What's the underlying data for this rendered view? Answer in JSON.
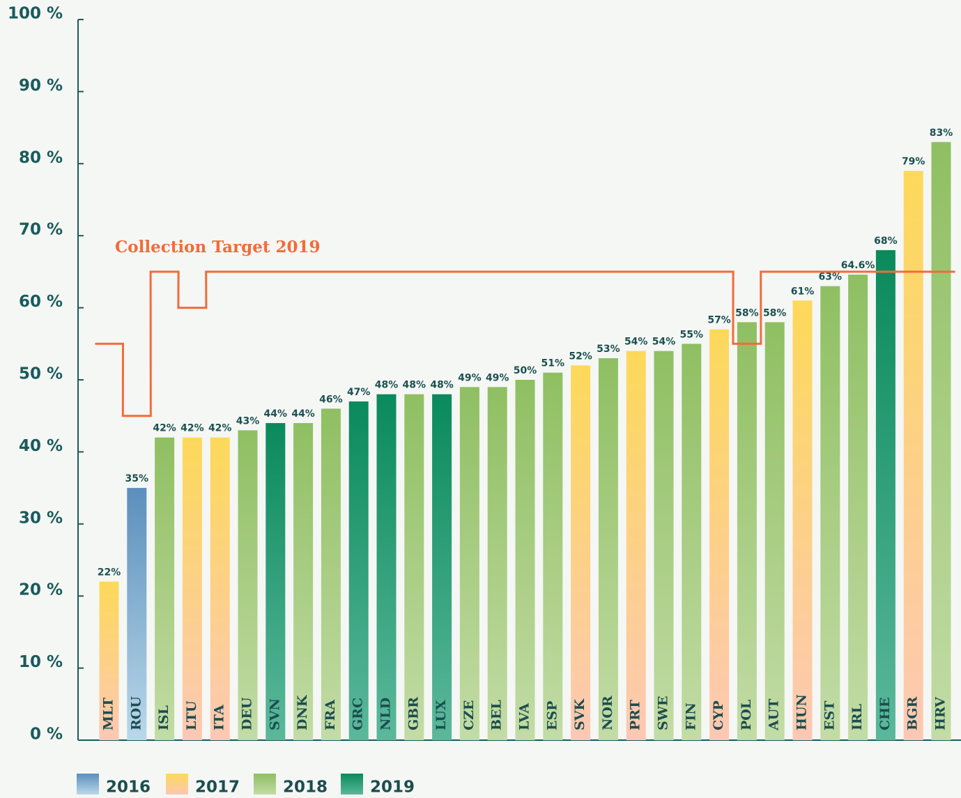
{
  "chart_data": {
    "type": "bar",
    "categories": [
      "MLT",
      "ROU",
      "ISL",
      "LTU",
      "ITA",
      "DEU",
      "SVN",
      "DNK",
      "FRA",
      "GRC",
      "NLD",
      "GBR",
      "LUX",
      "CZE",
      "BEL",
      "LVA",
      "ESP",
      "SVK",
      "NOR",
      "PRT",
      "SWE",
      "FIN",
      "CYP",
      "POL",
      "AUT",
      "HUN",
      "EST",
      "IRL",
      "CHE",
      "BGR",
      "HRV"
    ],
    "series": [
      {
        "name": "2016",
        "color": "#5b8fbc",
        "color_bottom": "#bad8ea",
        "values": [
          null,
          35,
          null,
          null,
          null,
          null,
          null,
          null,
          null,
          null,
          null,
          null,
          null,
          null,
          null,
          null,
          null,
          null,
          null,
          null,
          null,
          null,
          null,
          null,
          null,
          null,
          null,
          null,
          null,
          null,
          null
        ],
        "value_labels": [
          null,
          "35%",
          null,
          null,
          null,
          null,
          null,
          null,
          null,
          null,
          null,
          null,
          null,
          null,
          null,
          null,
          null,
          null,
          null,
          null,
          null,
          null,
          null,
          null,
          null,
          null,
          null,
          null,
          null,
          null,
          null
        ]
      },
      {
        "name": "2017",
        "color": "#fdd95a",
        "color_bottom": "#fdc8b4",
        "values": [
          22,
          null,
          null,
          42,
          42,
          null,
          null,
          null,
          null,
          null,
          null,
          null,
          null,
          null,
          null,
          null,
          null,
          52,
          null,
          54,
          null,
          null,
          57,
          null,
          null,
          61,
          null,
          null,
          null,
          79,
          null
        ],
        "value_labels": [
          "22%",
          null,
          null,
          "42%",
          "42%",
          null,
          null,
          null,
          null,
          null,
          null,
          null,
          null,
          null,
          null,
          null,
          null,
          "52%",
          null,
          "54%",
          null,
          null,
          "57%",
          null,
          null,
          "61%",
          null,
          null,
          null,
          "79%",
          null
        ]
      },
      {
        "name": "2018",
        "color": "#8fbf62",
        "color_bottom": "#c3dca6",
        "values": [
          null,
          null,
          42,
          null,
          null,
          43,
          null,
          44,
          46,
          null,
          null,
          48,
          null,
          49,
          49,
          50,
          51,
          null,
          53,
          null,
          54,
          55,
          null,
          58,
          58,
          null,
          63,
          64.6,
          null,
          null,
          83
        ],
        "value_labels": [
          null,
          null,
          "42%",
          null,
          null,
          "43%",
          null,
          "44%",
          "46%",
          null,
          null,
          "48%",
          null,
          "49%",
          "49%",
          "50%",
          "51%",
          null,
          "53%",
          null,
          "54%",
          "55%",
          null,
          "58%",
          "58%",
          null,
          "63%",
          "64.6%",
          null,
          null,
          "83%"
        ]
      },
      {
        "name": "2019",
        "color": "#0a8a5c",
        "color_bottom": "#5bb89b",
        "values": [
          null,
          null,
          null,
          null,
          null,
          null,
          44,
          null,
          null,
          47,
          48,
          null,
          48,
          null,
          null,
          null,
          null,
          null,
          null,
          null,
          null,
          null,
          null,
          null,
          null,
          null,
          null,
          null,
          68,
          null,
          null
        ],
        "value_labels": [
          null,
          null,
          null,
          null,
          null,
          null,
          "44%",
          null,
          null,
          "47%",
          "48%",
          null,
          "48%",
          null,
          null,
          null,
          null,
          null,
          null,
          null,
          null,
          null,
          null,
          null,
          null,
          null,
          null,
          null,
          "68%",
          null,
          null
        ]
      }
    ],
    "target": {
      "name": "Collection Target 2019",
      "color": "#f26b3a",
      "values": [
        55,
        45,
        65,
        60,
        65,
        65,
        65,
        65,
        65,
        65,
        65,
        65,
        65,
        65,
        65,
        65,
        65,
        65,
        65,
        65,
        65,
        65,
        65,
        55,
        65,
        65,
        65,
        65,
        65,
        65,
        65
      ]
    },
    "ylim": [
      0,
      100
    ],
    "yticks": [
      {
        "value": 0,
        "label": "0 %"
      },
      {
        "value": 10,
        "label": "10 %"
      },
      {
        "value": 20,
        "label": "20 %"
      },
      {
        "value": 30,
        "label": "30 %"
      },
      {
        "value": 40,
        "label": "40 %"
      },
      {
        "value": 50,
        "label": "50 %"
      },
      {
        "value": 60,
        "label": "60 %"
      },
      {
        "value": 70,
        "label": "70 %"
      },
      {
        "value": 80,
        "label": "80 %"
      },
      {
        "value": 90,
        "label": "90 %"
      },
      {
        "value": 100,
        "label": "100 %"
      }
    ],
    "grid": false
  }
}
